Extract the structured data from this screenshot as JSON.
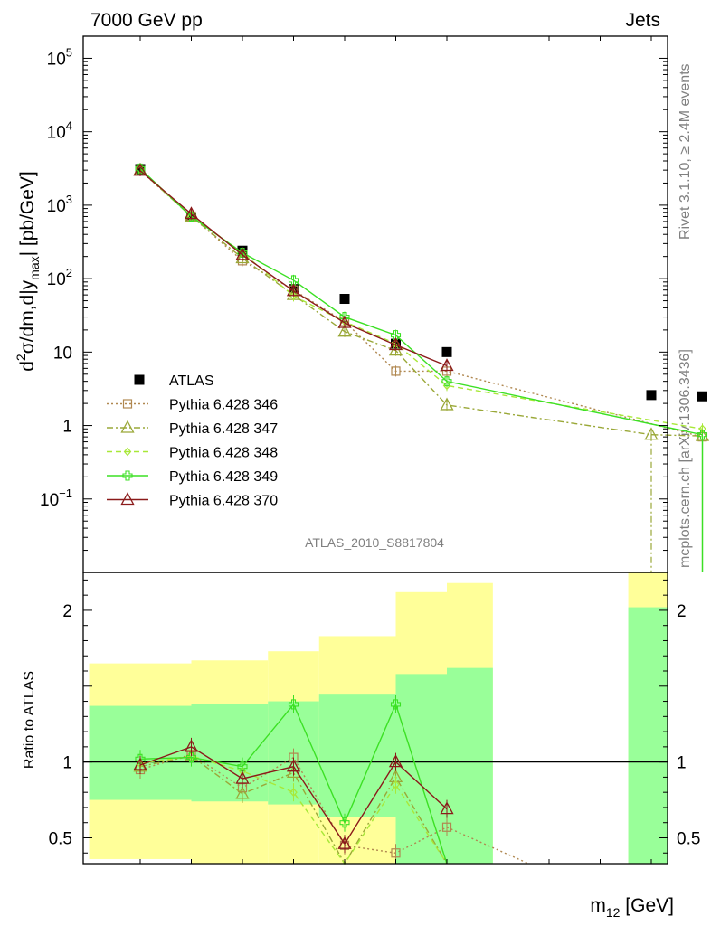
{
  "header": {
    "left": "7000 GeV pp",
    "right": "Jets"
  },
  "side_labels": {
    "rivet": "Rivet 3.1.10, ≥ 2.4M events",
    "mcplots": "mcplots.cern.ch [arXiv:1306.3436]"
  },
  "analysis_id": "ATLAS_2010_S8817804",
  "axis_labels": {
    "y_main": {
      "base": "d",
      "sup1": "2",
      "mid": "σ/dm,d|y",
      "sub": "max",
      "tail": "| [pb/GeV]"
    },
    "y_ratio": "Ratio to ATLAS",
    "x": {
      "base": "m",
      "sub": "12",
      "tail": " [GeV]"
    }
  },
  "colors": {
    "atlas": "#000000",
    "p346": "#b08850",
    "p347": "#9aa838",
    "p348": "#a8e838",
    "p349": "#3ce024",
    "p370": "#8b1a1a",
    "band_yellow": "#ffff99",
    "band_green": "#99ff99"
  },
  "chart_data": [
    {
      "type": "scatter",
      "yscale": "log",
      "ylim": [
        0.01,
        200000
      ],
      "y_ticks": [
        {
          "v": 0.1,
          "label": "10",
          "exp": "−1"
        },
        {
          "v": 1,
          "label": "1",
          "exp": ""
        },
        {
          "v": 10,
          "label": "10",
          "exp": ""
        },
        {
          "v": 100,
          "label": "10",
          "exp": "2"
        },
        {
          "v": 1000,
          "label": "10",
          "exp": "3"
        },
        {
          "v": 10000,
          "label": "10",
          "exp": "4"
        },
        {
          "v": 100000,
          "label": "10",
          "exp": "5"
        }
      ],
      "x_bins": [
        1,
        2,
        3,
        4,
        5,
        6,
        7,
        8,
        9,
        10,
        11,
        12
      ],
      "legend_position": "middle-left",
      "series": [
        {
          "name": "ATLAS",
          "key": "atlas",
          "marker": "filled-square",
          "line": "none",
          "x": [
            1,
            2,
            3,
            4,
            5,
            6,
            7,
            11,
            12
          ],
          "y": [
            3100,
            680,
            240,
            72,
            53,
            13,
            10,
            2.6,
            2.5
          ]
        },
        {
          "name": "Pythia 6.428 346",
          "key": "p346",
          "marker": "open-square",
          "line": "dotted",
          "x": [
            1,
            2,
            3,
            4,
            5,
            6,
            7,
            12
          ],
          "y": [
            2950,
            710,
            175,
            70,
            26,
            5.5,
            5.5,
            0.7
          ]
        },
        {
          "name": "Pythia 6.428 347",
          "key": "p347",
          "marker": "open-triangle",
          "line": "dashdot",
          "x": [
            1,
            2,
            3,
            4,
            5,
            6,
            7,
            11,
            12
          ],
          "y": [
            3000,
            700,
            190,
            60,
            19,
            10.5,
            1.9,
            0.75,
            0.72
          ]
        },
        {
          "name": "Pythia 6.428 348",
          "key": "p348",
          "marker": "open-diamond",
          "line": "dashed",
          "x": [
            1,
            2,
            3,
            4,
            5,
            6,
            7,
            12
          ],
          "y": [
            3050,
            710,
            225,
            58,
            26,
            13,
            3.5,
            0.9
          ]
        },
        {
          "name": "Pythia 6.428 349",
          "key": "p349",
          "marker": "open-cross",
          "line": "solid",
          "x": [
            1,
            2,
            3,
            4,
            5,
            6,
            7,
            12
          ],
          "y": [
            3150,
            700,
            225,
            95,
            30,
            17,
            4,
            0.75
          ]
        },
        {
          "name": "Pythia 6.428 370",
          "key": "p370",
          "marker": "open-triangle",
          "line": "solid",
          "x": [
            1,
            2,
            3,
            4,
            5,
            6,
            7
          ],
          "y": [
            2950,
            760,
            210,
            68,
            25,
            12.5,
            6.5
          ]
        }
      ]
    },
    {
      "type": "line",
      "ylim": [
        0.33,
        2.25
      ],
      "y_ticks": [
        0.5,
        1,
        2
      ],
      "reference_line": 1,
      "bands": {
        "yellow": [
          {
            "x0": 0.0,
            "x1": 2.0,
            "lo": 0.36,
            "hi": 1.65
          },
          {
            "x0": 2.0,
            "x1": 3.5,
            "lo": 0.33,
            "hi": 1.67
          },
          {
            "x0": 3.5,
            "x1": 4.5,
            "lo": 0.33,
            "hi": 1.73
          },
          {
            "x0": 4.5,
            "x1": 6.0,
            "lo": 0.33,
            "hi": 1.83
          },
          {
            "x0": 6.0,
            "x1": 7.0,
            "lo": 0.33,
            "hi": 2.12
          },
          {
            "x0": 7.0,
            "x1": 7.9,
            "lo": 0.33,
            "hi": 2.18
          },
          {
            "x0": 10.55,
            "x1": 12.4,
            "lo": 0.33,
            "hi": 2.25
          }
        ],
        "green": [
          {
            "x0": 0.0,
            "x1": 2.0,
            "lo": 0.75,
            "hi": 1.37
          },
          {
            "x0": 2.0,
            "x1": 3.5,
            "lo": 0.74,
            "hi": 1.38
          },
          {
            "x0": 3.5,
            "x1": 4.5,
            "lo": 0.72,
            "hi": 1.4
          },
          {
            "x0": 4.5,
            "x1": 6.0,
            "lo": 0.64,
            "hi": 1.45
          },
          {
            "x0": 6.0,
            "x1": 7.0,
            "lo": 0.33,
            "hi": 1.58
          },
          {
            "x0": 7.0,
            "x1": 7.9,
            "lo": 0.33,
            "hi": 1.62
          },
          {
            "x0": 10.55,
            "x1": 12.4,
            "lo": 0.33,
            "hi": 2.02
          }
        ]
      },
      "series": [
        {
          "name": "Pythia 6.428 346",
          "key": "p346",
          "x": [
            1,
            2,
            3,
            4,
            5,
            6,
            7,
            8.6
          ],
          "y": [
            0.95,
            1.05,
            0.83,
            1.03,
            0.45,
            0.4,
            0.57,
            0.33
          ]
        },
        {
          "name": "Pythia 6.428 347",
          "key": "p347",
          "x": [
            1,
            2,
            3,
            4,
            5,
            6,
            7
          ],
          "y": [
            0.97,
            1.04,
            0.79,
            0.93,
            0.33,
            0.9,
            0.33
          ]
        },
        {
          "name": "Pythia 6.428 348",
          "key": "p348",
          "x": [
            1,
            2,
            3,
            4,
            5,
            6,
            7
          ],
          "y": [
            0.99,
            1.04,
            0.94,
            0.8,
            0.33,
            0.85,
            0.33
          ]
        },
        {
          "name": "Pythia 6.428 349",
          "key": "p349",
          "x": [
            1,
            2,
            3,
            4,
            5,
            6,
            7
          ],
          "y": [
            1.02,
            1.03,
            0.97,
            1.38,
            0.6,
            1.38,
            0.33
          ]
        },
        {
          "name": "Pythia 6.428 370",
          "key": "p370",
          "x": [
            1,
            2,
            3,
            4,
            5,
            6,
            7
          ],
          "y": [
            0.98,
            1.1,
            0.89,
            0.97,
            0.46,
            1.0,
            0.69
          ]
        }
      ]
    }
  ]
}
